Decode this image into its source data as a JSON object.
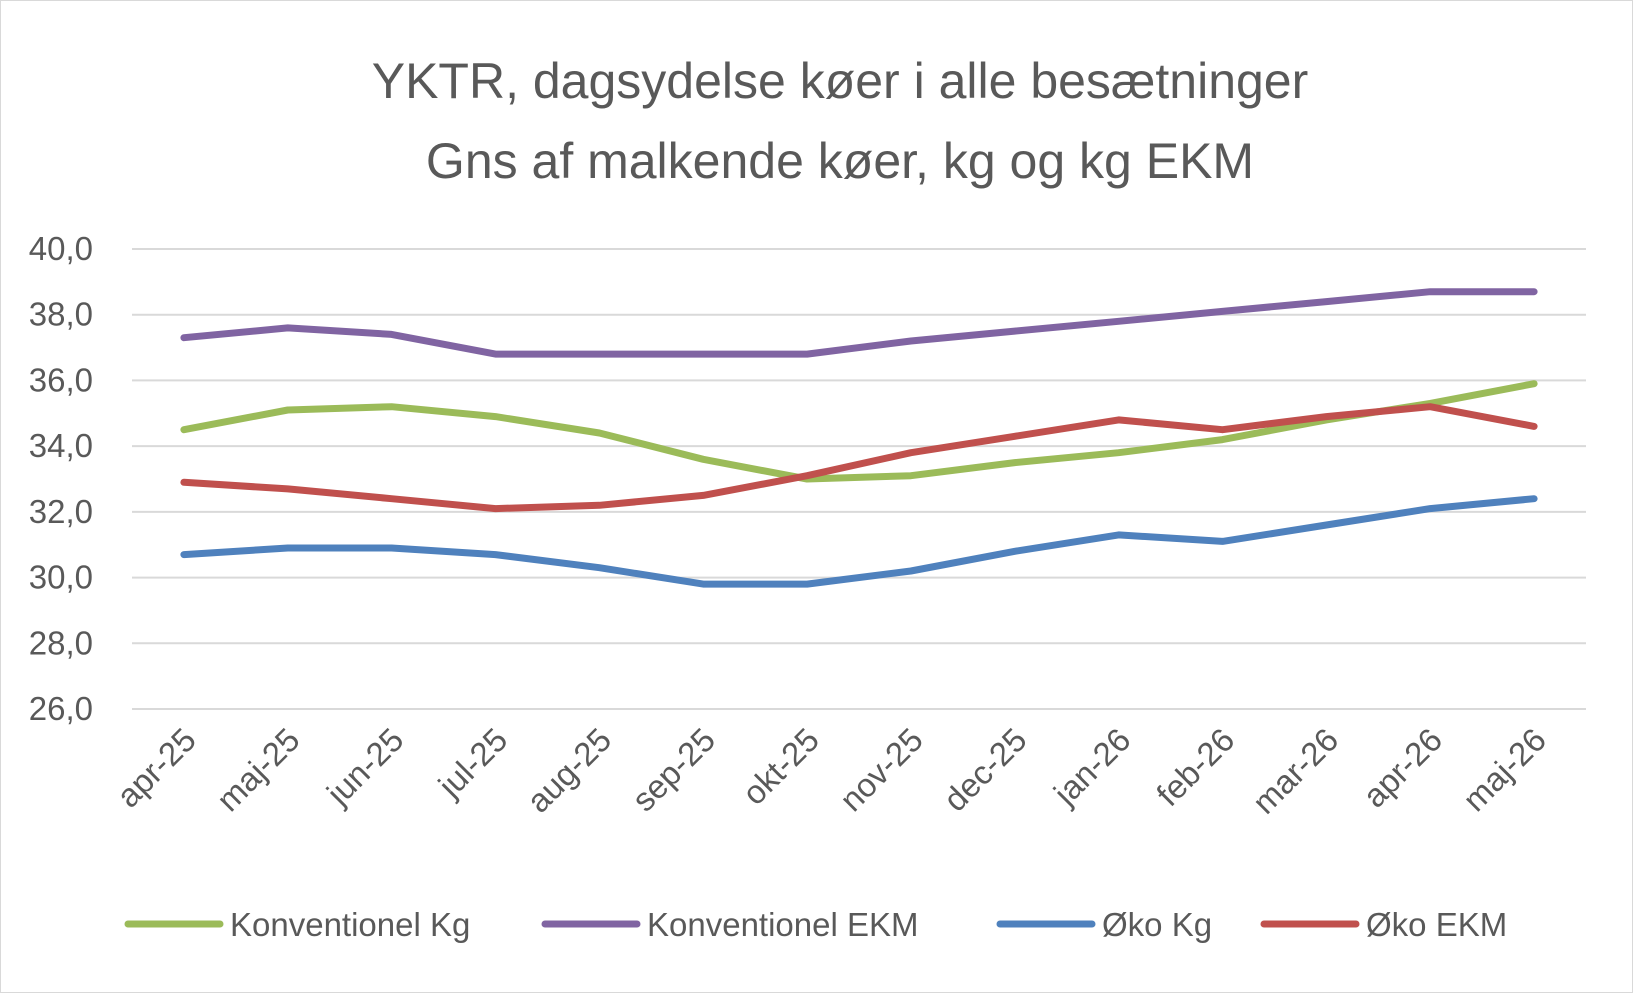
{
  "chart_data": {
    "type": "line",
    "title": "YKTR, dagsydelse køer i alle besætninger",
    "subtitle": "Gns af malkende køer, kg og kg EKM",
    "categories": [
      "apr-25",
      "maj-25",
      "jun-25",
      "jul-25",
      "aug-25",
      "sep-25",
      "okt-25",
      "nov-25",
      "dec-25",
      "jan-26",
      "feb-26",
      "mar-26",
      "apr-26",
      "maj-26"
    ],
    "ylim": [
      26,
      40
    ],
    "yticks": [
      "26,0",
      "28,0",
      "30,0",
      "32,0",
      "34,0",
      "36,0",
      "38,0",
      "40,0"
    ],
    "grid": true,
    "legend_position": "bottom",
    "series": [
      {
        "name": "Konventionel Kg",
        "color": "#9bbb59",
        "values": [
          34.5,
          35.1,
          35.2,
          34.9,
          34.4,
          33.6,
          33.0,
          33.1,
          33.5,
          33.8,
          34.2,
          34.8,
          35.3,
          35.9
        ]
      },
      {
        "name": "Konventionel EKM",
        "color": "#8064a2",
        "values": [
          37.3,
          37.6,
          37.4,
          36.8,
          36.8,
          36.8,
          36.8,
          37.2,
          37.5,
          37.8,
          38.1,
          38.4,
          38.7,
          38.7
        ]
      },
      {
        "name": "Øko Kg",
        "color": "#4f81bd",
        "values": [
          30.7,
          30.9,
          30.9,
          30.7,
          30.3,
          29.8,
          29.8,
          30.2,
          30.8,
          31.3,
          31.1,
          31.6,
          32.1,
          32.4
        ]
      },
      {
        "name": "Øko EKM",
        "color": "#c0504d",
        "values": [
          32.9,
          32.7,
          32.4,
          32.1,
          32.2,
          32.5,
          33.1,
          33.8,
          34.3,
          34.8,
          34.5,
          34.9,
          35.2,
          34.6
        ]
      }
    ]
  }
}
